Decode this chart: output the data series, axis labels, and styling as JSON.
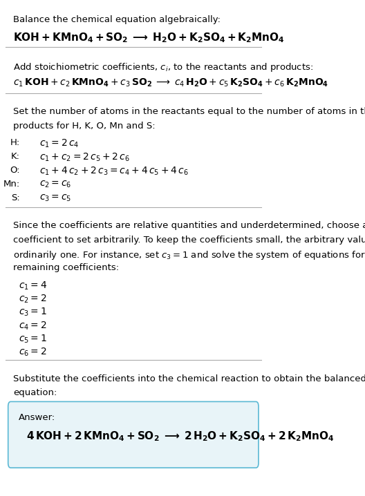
{
  "bg_color": "#ffffff",
  "text_color": "#000000",
  "answer_box_color": "#e8f4f8",
  "answer_box_edge": "#5bb8d4",
  "figsize": [
    5.28,
    7.18
  ],
  "dpi": 100,
  "section1_title": "Balance the chemical equation algebraically:",
  "section2_title": "Add stoichiometric coefficients, $c_i$, to the reactants and products:",
  "section3_intro_1": "Set the number of atoms in the reactants equal to the number of atoms in the",
  "section3_intro_2": "products for H, K, O, Mn and S:",
  "section3_equations": [
    [
      "H:",
      "$c_1 = 2\\,c_4$"
    ],
    [
      "K:",
      "$c_1 + c_2 = 2\\,c_5 + 2\\,c_6$"
    ],
    [
      "O:",
      "$c_1 + 4\\,c_2 + 2\\,c_3 = c_4 + 4\\,c_5 + 4\\,c_6$"
    ],
    [
      "Mn:",
      "$c_2 = c_6$"
    ],
    [
      "S:",
      "$c_3 = c_5$"
    ]
  ],
  "section4_lines": [
    "Since the coefficients are relative quantities and underdetermined, choose a",
    "coefficient to set arbitrarily. To keep the coefficients small, the arbitrary value is",
    "ordinarily one. For instance, set $c_3 = 1$ and solve the system of equations for the",
    "remaining coefficients:"
  ],
  "section4_coeffs": [
    "$c_1 = 4$",
    "$c_2 = 2$",
    "$c_3 = 1$",
    "$c_4 = 2$",
    "$c_5 = 1$",
    "$c_6 = 2$"
  ],
  "section5_lines": [
    "Substitute the coefficients into the chemical reaction to obtain the balanced",
    "equation:"
  ],
  "answer_label": "Answer:",
  "line_color": "#aaaaaa",
  "line_width": 0.8
}
